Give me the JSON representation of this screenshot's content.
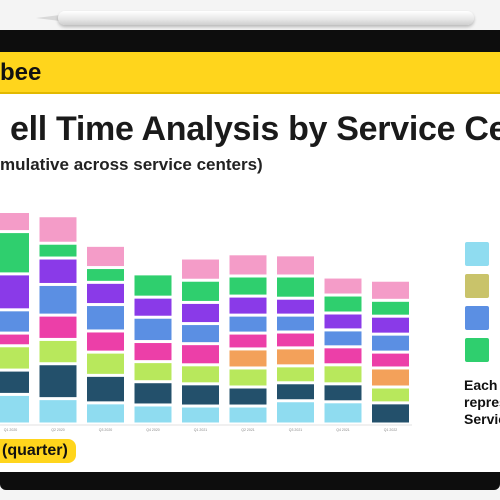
{
  "slide": {
    "brand": "bee",
    "title": "ell Time Analysis by Service Ce",
    "subtitle": "mulative across service centers)",
    "xlabel": "(quarter)",
    "note_lines": [
      "Each c",
      "repres",
      "Servic"
    ]
  },
  "colors": {
    "accent": "#ffd51c",
    "segments": [
      "#8fdcf0",
      "#23506b",
      "#b8e85c",
      "#f3a15a",
      "#ec3fa8",
      "#5b8fe3",
      "#8a3ae8",
      "#2fcf6e",
      "#f49cc8"
    ]
  },
  "chart_data": {
    "type": "bar",
    "stacked": true,
    "categories": [
      "Q1 2020",
      "Q2 2020",
      "Q3 2020",
      "Q4 2020",
      "Q1 2021",
      "Q2 2021",
      "Q3 2021",
      "Q4 2021",
      "Q1 2022"
    ],
    "series": [
      {
        "color": "#8fdcf0",
        "values": [
          28,
          24,
          20,
          18,
          17,
          17,
          22,
          21,
          0
        ]
      },
      {
        "color": "#23506b",
        "values": [
          23,
          33,
          26,
          22,
          21,
          18,
          17,
          17,
          20
        ]
      },
      {
        "color": "#b8e85c",
        "values": [
          23,
          23,
          22,
          19,
          18,
          18,
          16,
          18,
          15
        ]
      },
      {
        "color": "#f3a15a",
        "values": [
          0,
          0,
          0,
          0,
          0,
          18,
          17,
          0,
          18
        ]
      },
      {
        "color": "#ec3fa8",
        "values": [
          12,
          23,
          20,
          19,
          20,
          15,
          15,
          17,
          15
        ]
      },
      {
        "color": "#5b8fe3",
        "values": [
          22,
          29,
          25,
          23,
          19,
          17,
          16,
          16,
          17
        ]
      },
      {
        "color": "#8a3ae8",
        "values": [
          34,
          25,
          21,
          19,
          20,
          18,
          16,
          16,
          17
        ]
      },
      {
        "color": "#2fcf6e",
        "values": [
          40,
          14,
          14,
          22,
          21,
          19,
          21,
          17,
          15
        ]
      },
      {
        "color": "#f49cc8",
        "values": [
          19,
          26,
          21,
          0,
          21,
          21,
          20,
          17,
          19
        ]
      }
    ],
    "ylim": [
      0,
      210
    ],
    "legend": "right"
  }
}
